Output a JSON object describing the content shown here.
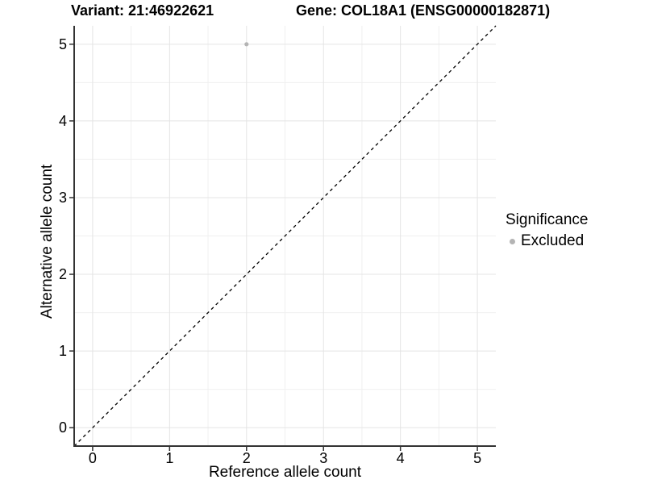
{
  "titles": {
    "left": "Variant: 21:46922621",
    "right": "Gene: COL18A1 (ENSG00000182871)"
  },
  "legend": {
    "title": "Significance",
    "items": [
      {
        "label": "Excluded",
        "color": "#b4b4b4"
      }
    ]
  },
  "chart_data": {
    "type": "scatter",
    "title": "Variant: 21:46922621  |  Gene: COL18A1 (ENSG00000182871)",
    "xlabel": "Reference allele count",
    "ylabel": "Alternative allele count",
    "xlim": [
      -0.24,
      5.24
    ],
    "ylim": [
      -0.24,
      5.24
    ],
    "x_ticks": [
      0,
      1,
      2,
      3,
      4,
      5
    ],
    "y_ticks": [
      0,
      1,
      2,
      3,
      4,
      5
    ],
    "minor_ticks": [
      0.5,
      1.5,
      2.5,
      3.5,
      4.5
    ],
    "grid": true,
    "legend_position": "right",
    "reference_line": {
      "type": "identity",
      "style": "dashed",
      "color": "#000000"
    },
    "series": [
      {
        "name": "Excluded",
        "color": "#b4b4b4",
        "points": [
          {
            "x": 2,
            "y": 5
          }
        ]
      }
    ],
    "colors": {
      "grid_major": "#e4e4e4",
      "grid_minor": "#f0f0f0",
      "axis": "#333333",
      "point": "#b4b4b4",
      "text": "#000000"
    }
  }
}
